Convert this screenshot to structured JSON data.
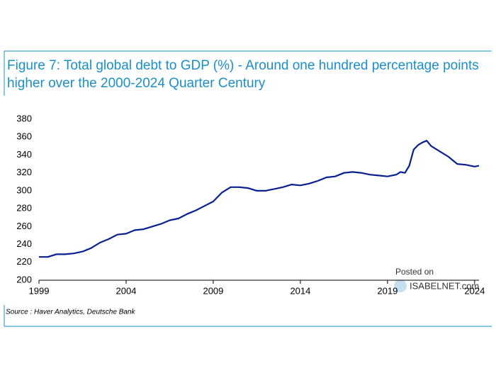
{
  "chart_data": {
    "type": "line",
    "title": "Figure 7: Total global debt to GDP (%) - Around one hundred percentage points",
    "subtitle": "higher over the 2000-2024 Quarter Century",
    "source": "Source : Haver Analytics, Deutsche Bank",
    "watermark": [
      "Posted on",
      "ISABELNET.com"
    ],
    "x": [
      1999,
      1999.5,
      2000,
      2000.5,
      2001,
      2001.5,
      2002,
      2002.5,
      2003,
      2003.5,
      2004,
      2004.5,
      2005,
      2005.5,
      2006,
      2006.5,
      2007,
      2007.5,
      2008,
      2008.5,
      2009,
      2009.5,
      2010,
      2010.5,
      2011,
      2011.5,
      2012,
      2012.5,
      2013,
      2013.5,
      2014,
      2014.5,
      2015,
      2015.5,
      2016,
      2016.5,
      2017,
      2017.5,
      2018,
      2018.5,
      2019,
      2019.5,
      2019.75,
      2020,
      2020.25,
      2020.5,
      2020.75,
      2021,
      2021.25,
      2021.5,
      2022,
      2022.5,
      2023,
      2023.5,
      2024,
      2024.25
    ],
    "series": [
      {
        "name": "Total global debt to GDP",
        "color": "#0a1f8f",
        "values": [
          226,
          226,
          229,
          229,
          230,
          232,
          236,
          242,
          246,
          251,
          252,
          256,
          257,
          260,
          263,
          267,
          269,
          274,
          278,
          283,
          288,
          298,
          304,
          304,
          303,
          300,
          300,
          302,
          304,
          307,
          306,
          308,
          311,
          315,
          316,
          320,
          321,
          320,
          318,
          317,
          316,
          318,
          321,
          320,
          328,
          346,
          351,
          354,
          356,
          350,
          344,
          338,
          330,
          329,
          327,
          328
        ]
      }
    ],
    "xlim": [
      1999,
      2024.25
    ],
    "xticks": [
      1999,
      2004,
      2009,
      2014,
      2019,
      2024
    ],
    "ylim": [
      200,
      380
    ],
    "yticks": [
      200,
      220,
      240,
      260,
      280,
      300,
      320,
      340,
      360,
      380
    ],
    "grid": false
  }
}
